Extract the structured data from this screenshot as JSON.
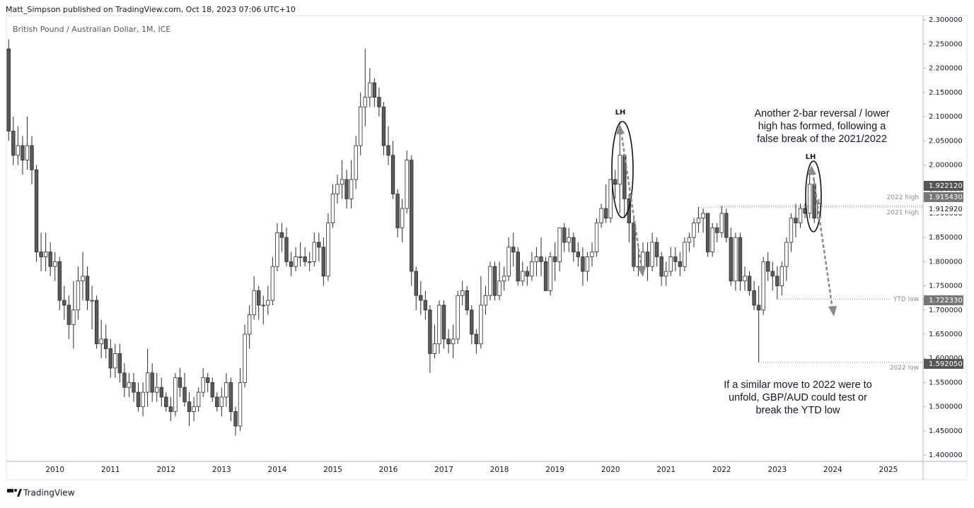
{
  "header": "Matt_Simpson published on TradingView.com, Oct 18, 2023 07:06 UTC+10",
  "footer": "TradingView",
  "chart_data": {
    "type": "candlestick",
    "title": "British Pound / Australian Dollar, 1M, ICE",
    "up_color": "#ffffff",
    "down_color": "#5a5a5a",
    "wick_color": "#2a2a2a",
    "grid": false,
    "ylim": [
      1.387,
      2.309
    ],
    "yticks": [
      {
        "value": 1.4,
        "label": "1.400000"
      },
      {
        "value": 1.45,
        "label": "1.450000"
      },
      {
        "value": 1.5,
        "label": "1.500000"
      },
      {
        "value": 1.55,
        "label": "1.550000"
      },
      {
        "value": 1.6,
        "label": "1.600000"
      },
      {
        "value": 1.65,
        "label": "1.650000"
      },
      {
        "value": 1.7,
        "label": "1.700000"
      },
      {
        "value": 1.75,
        "label": "1.750000"
      },
      {
        "value": 1.8,
        "label": "1.800000"
      },
      {
        "value": 1.85,
        "label": "1.850000"
      },
      {
        "value": 1.9,
        "label": "1.900000"
      },
      {
        "value": 1.95,
        "label": "1.950000"
      },
      {
        "value": 2.0,
        "label": "2.000000"
      },
      {
        "value": 2.05,
        "label": "2.050000"
      },
      {
        "value": 2.1,
        "label": "2.100000"
      },
      {
        "value": 2.15,
        "label": "2.150000"
      },
      {
        "value": 2.2,
        "label": "2.200000"
      },
      {
        "value": 2.25,
        "label": "2.250000"
      },
      {
        "value": 2.3,
        "label": "2.300000"
      }
    ],
    "categories": [
      null,
      null,
      null,
      null,
      null,
      null,
      null,
      null,
      null,
      null,
      "2010",
      null,
      null,
      null,
      null,
      null,
      null,
      null,
      null,
      null,
      null,
      null,
      "2011",
      null,
      null,
      null,
      null,
      null,
      null,
      null,
      null,
      null,
      null,
      null,
      "2012",
      null,
      null,
      null,
      null,
      null,
      null,
      null,
      null,
      null,
      null,
      null,
      "2013",
      null,
      null,
      null,
      null,
      null,
      null,
      null,
      null,
      null,
      null,
      null,
      "2014",
      null,
      null,
      null,
      null,
      null,
      null,
      null,
      null,
      null,
      null,
      null,
      "2015",
      null,
      null,
      null,
      null,
      null,
      null,
      null,
      null,
      null,
      null,
      null,
      "2016",
      null,
      null,
      null,
      null,
      null,
      null,
      null,
      null,
      null,
      null,
      null,
      "2017",
      null,
      null,
      null,
      null,
      null,
      null,
      null,
      null,
      null,
      null,
      null,
      "2018",
      null,
      null,
      null,
      null,
      null,
      null,
      null,
      null,
      null,
      null,
      null,
      "2019",
      null,
      null,
      null,
      null,
      null,
      null,
      null,
      null,
      null,
      null,
      null,
      "2020",
      null,
      null,
      null,
      null,
      null,
      null,
      null,
      null,
      null,
      null,
      null,
      "2021",
      null,
      null,
      null,
      null,
      null,
      null,
      null,
      null,
      null,
      null,
      null,
      "2022",
      null,
      null,
      null,
      null,
      null,
      null,
      null,
      null,
      null,
      null,
      null,
      "2023",
      null,
      null,
      null,
      null,
      null,
      null,
      null,
      null,
      null,
      null,
      null,
      "2024",
      null,
      null,
      null,
      null,
      null,
      null,
      null,
      null,
      null,
      null,
      null,
      "2025",
      null,
      null,
      null,
      null,
      null,
      null,
      null
    ],
    "open": [
      2.24,
      2.07,
      2.02,
      2.04,
      2.01,
      2.04,
      1.99,
      1.82,
      1.81,
      1.82,
      1.79,
      1.8,
      1.72,
      1.71,
      1.67,
      1.7,
      1.76,
      1.77,
      1.72,
      1.72,
      1.63,
      1.64,
      1.62,
      1.58,
      1.61,
      1.57,
      1.54,
      1.55,
      1.53,
      1.5,
      1.53,
      1.57,
      1.53,
      1.54,
      1.52,
      1.5,
      1.49,
      1.56,
      1.54,
      1.51,
      1.49,
      1.5,
      1.53,
      1.56,
      1.55,
      1.52,
      1.5,
      1.52,
      1.55,
      1.49,
      1.46,
      1.55,
      1.65,
      1.69,
      1.74,
      1.71,
      1.71,
      1.72,
      1.79,
      1.86,
      1.85,
      1.8,
      1.79,
      1.81,
      1.81,
      1.8,
      1.8,
      1.84,
      1.83,
      1.77,
      1.88,
      1.94,
      1.96,
      1.97,
      1.93,
      1.97,
      2.04,
      2.12,
      2.14,
      2.17,
      2.14,
      2.12,
      2.04,
      2.02,
      1.94,
      1.87,
      1.91,
      2.01,
      1.78,
      1.73,
      1.72,
      1.7,
      1.61,
      1.63,
      1.71,
      1.64,
      1.63,
      1.64,
      1.73,
      1.74,
      1.7,
      1.65,
      1.63,
      1.71,
      1.73,
      1.79,
      1.73,
      1.76,
      1.77,
      1.83,
      1.82,
      1.76,
      1.78,
      1.77,
      1.8,
      1.81,
      1.8,
      1.74,
      1.81,
      1.8,
      1.87,
      1.84,
      1.85,
      1.82,
      1.81,
      1.78,
      1.81,
      1.82,
      1.88,
      1.91,
      1.89,
      1.97,
      1.96,
      2.02,
      1.93,
      1.88,
      1.79,
      1.79,
      1.82,
      1.79,
      1.84,
      1.81,
      1.77,
      1.78,
      1.81,
      1.8,
      1.79,
      1.84,
      1.85,
      1.88,
      1.89,
      1.9,
      1.82,
      1.87,
      1.86,
      1.9,
      1.85,
      1.76,
      1.85,
      1.76,
      1.77,
      1.74,
      1.71,
      1.7,
      1.8,
      1.78,
      1.77,
      1.75,
      1.79,
      1.84,
      1.89,
      1.88,
      1.91,
      1.9,
      1.96,
      1.89,
      null,
      null,
      null,
      null,
      null,
      null,
      null,
      null,
      null,
      null,
      null,
      null,
      null,
      null,
      null,
      null,
      null,
      null,
      null,
      null,
      null,
      null
    ],
    "high": [
      2.26,
      2.1,
      2.08,
      2.06,
      2.1,
      2.06,
      2.0,
      1.86,
      1.86,
      1.84,
      1.82,
      1.81,
      1.75,
      1.73,
      1.76,
      1.79,
      1.82,
      1.79,
      1.75,
      1.73,
      1.68,
      1.67,
      1.64,
      1.63,
      1.63,
      1.59,
      1.57,
      1.57,
      1.55,
      1.55,
      1.62,
      1.59,
      1.57,
      1.56,
      1.53,
      1.52,
      1.57,
      1.58,
      1.57,
      1.53,
      1.52,
      1.54,
      1.58,
      1.57,
      1.56,
      1.53,
      1.54,
      1.57,
      1.56,
      1.5,
      1.58,
      1.67,
      1.71,
      1.77,
      1.75,
      1.73,
      1.75,
      1.81,
      1.88,
      1.88,
      1.87,
      1.82,
      1.83,
      1.84,
      1.83,
      1.82,
      1.86,
      1.86,
      1.85,
      1.9,
      1.96,
      1.98,
      2.01,
      1.99,
      2.01,
      2.06,
      2.15,
      2.24,
      2.2,
      2.18,
      2.16,
      2.13,
      2.08,
      2.05,
      1.95,
      1.93,
      2.03,
      2.02,
      1.79,
      1.76,
      1.74,
      1.71,
      1.67,
      1.72,
      1.72,
      1.66,
      1.67,
      1.74,
      1.76,
      1.75,
      1.71,
      1.66,
      1.77,
      1.75,
      1.8,
      1.8,
      1.8,
      1.79,
      1.85,
      1.86,
      1.83,
      1.8,
      1.79,
      1.82,
      1.83,
      1.85,
      1.81,
      1.82,
      1.84,
      1.87,
      1.88,
      1.87,
      1.86,
      1.84,
      1.83,
      1.82,
      1.84,
      1.89,
      1.92,
      1.96,
      1.97,
      1.99,
      2.09,
      2.02,
      1.94,
      1.89,
      1.83,
      1.84,
      1.84,
      1.86,
      1.85,
      1.82,
      1.8,
      1.83,
      1.83,
      1.82,
      1.85,
      1.86,
      1.89,
      1.913,
      1.91,
      1.9,
      1.88,
      1.88,
      1.915,
      1.91,
      1.87,
      1.86,
      1.86,
      1.79,
      1.78,
      1.76,
      1.75,
      1.81,
      1.82,
      1.8,
      1.79,
      1.8,
      1.85,
      1.9,
      1.92,
      1.92,
      1.92,
      1.99,
      1.97,
      1.93,
      null,
      null,
      null,
      null,
      null,
      null,
      null,
      null,
      null,
      null,
      null,
      null,
      null,
      null,
      null,
      null,
      null,
      null,
      null,
      null,
      null,
      null
    ],
    "low": [
      2.05,
      2.0,
      2.0,
      1.98,
      1.99,
      1.96,
      1.8,
      1.78,
      1.78,
      1.77,
      1.76,
      1.7,
      1.68,
      1.64,
      1.62,
      1.68,
      1.72,
      1.7,
      1.66,
      1.62,
      1.6,
      1.6,
      1.56,
      1.56,
      1.55,
      1.52,
      1.52,
      1.51,
      1.49,
      1.48,
      1.5,
      1.51,
      1.51,
      1.5,
      1.49,
      1.47,
      1.48,
      1.52,
      1.5,
      1.46,
      1.47,
      1.49,
      1.52,
      1.53,
      1.51,
      1.49,
      1.48,
      1.5,
      1.47,
      1.44,
      1.45,
      1.54,
      1.62,
      1.68,
      1.68,
      1.67,
      1.69,
      1.71,
      1.78,
      1.82,
      1.79,
      1.77,
      1.78,
      1.79,
      1.79,
      1.78,
      1.79,
      1.8,
      1.75,
      1.76,
      1.87,
      1.92,
      1.93,
      1.91,
      1.91,
      1.95,
      2.02,
      2.08,
      2.12,
      2.12,
      2.1,
      2.02,
      2.0,
      1.93,
      1.85,
      1.84,
      1.9,
      1.75,
      1.7,
      1.69,
      1.68,
      1.57,
      1.6,
      1.61,
      1.62,
      1.61,
      1.6,
      1.63,
      1.71,
      1.69,
      1.63,
      1.61,
      1.62,
      1.69,
      1.72,
      1.72,
      1.72,
      1.74,
      1.76,
      1.79,
      1.75,
      1.75,
      1.75,
      1.76,
      1.77,
      1.77,
      1.74,
      1.73,
      1.76,
      1.78,
      1.82,
      1.82,
      1.8,
      1.79,
      1.75,
      1.76,
      1.79,
      1.81,
      1.87,
      1.88,
      1.88,
      1.93,
      1.9,
      1.89,
      1.84,
      1.78,
      1.77,
      1.77,
      1.76,
      1.78,
      1.79,
      1.75,
      1.75,
      1.77,
      1.78,
      1.77,
      1.78,
      1.82,
      1.83,
      1.86,
      1.86,
      1.81,
      1.81,
      1.84,
      1.85,
      1.84,
      1.75,
      1.74,
      1.74,
      1.74,
      1.73,
      1.7,
      1.592,
      1.69,
      1.76,
      1.74,
      1.722,
      1.73,
      1.76,
      1.82,
      1.85,
      1.87,
      1.89,
      1.89,
      1.88,
      1.88,
      null,
      null,
      null,
      null,
      null,
      null,
      null,
      null,
      null,
      null,
      null,
      null,
      null,
      null,
      null,
      null,
      null,
      null,
      null,
      null,
      null,
      null
    ],
    "close": [
      2.07,
      2.02,
      2.04,
      2.01,
      2.04,
      1.99,
      1.82,
      1.81,
      1.82,
      1.79,
      1.8,
      1.72,
      1.71,
      1.67,
      1.7,
      1.76,
      1.77,
      1.72,
      1.72,
      1.63,
      1.64,
      1.62,
      1.58,
      1.61,
      1.57,
      1.54,
      1.55,
      1.53,
      1.5,
      1.53,
      1.57,
      1.53,
      1.54,
      1.52,
      1.5,
      1.49,
      1.56,
      1.54,
      1.51,
      1.49,
      1.5,
      1.53,
      1.56,
      1.55,
      1.52,
      1.5,
      1.52,
      1.55,
      1.49,
      1.46,
      1.55,
      1.65,
      1.69,
      1.74,
      1.71,
      1.71,
      1.72,
      1.79,
      1.86,
      1.85,
      1.8,
      1.79,
      1.81,
      1.81,
      1.8,
      1.8,
      1.84,
      1.83,
      1.77,
      1.88,
      1.94,
      1.96,
      1.97,
      1.93,
      1.97,
      2.04,
      2.12,
      2.14,
      2.17,
      2.14,
      2.12,
      2.04,
      2.02,
      1.94,
      1.87,
      1.91,
      2.01,
      1.78,
      1.73,
      1.72,
      1.7,
      1.61,
      1.63,
      1.71,
      1.64,
      1.63,
      1.64,
      1.73,
      1.74,
      1.7,
      1.65,
      1.63,
      1.71,
      1.73,
      1.79,
      1.73,
      1.76,
      1.77,
      1.83,
      1.82,
      1.76,
      1.78,
      1.77,
      1.8,
      1.81,
      1.8,
      1.74,
      1.81,
      1.8,
      1.87,
      1.84,
      1.85,
      1.82,
      1.81,
      1.78,
      1.81,
      1.82,
      1.88,
      1.91,
      1.89,
      1.97,
      1.96,
      2.02,
      1.93,
      1.88,
      1.79,
      1.79,
      1.82,
      1.79,
      1.84,
      1.81,
      1.77,
      1.78,
      1.81,
      1.8,
      1.79,
      1.84,
      1.85,
      1.88,
      1.89,
      1.9,
      1.82,
      1.87,
      1.86,
      1.9,
      1.85,
      1.76,
      1.85,
      1.76,
      1.77,
      1.74,
      1.71,
      1.7,
      1.8,
      1.78,
      1.77,
      1.75,
      1.79,
      1.84,
      1.89,
      1.88,
      1.91,
      1.9,
      1.96,
      1.89,
      1.92,
      null,
      null,
      null,
      null,
      null,
      null,
      null,
      null,
      null,
      null,
      null,
      null,
      null,
      null,
      null,
      null,
      null,
      null,
      null,
      null,
      null,
      null
    ],
    "levels": [
      {
        "value": 1.92212,
        "label": "1.922120"
      },
      {
        "value": 1.91543,
        "label": "1.915430",
        "name": "2022 high"
      },
      {
        "value": 1.91292,
        "label": "1.912920",
        "name": "2021 high"
      },
      {
        "value": 1.72233,
        "label": "1.722330",
        "name": "YTD low"
      },
      {
        "value": 1.59205,
        "label": "1.592050",
        "name": "2022 low"
      }
    ],
    "peak_labels": [
      "LH",
      "LH"
    ],
    "annotations": [
      [
        "Another 2-bar reversal / lower",
        "high has formed, following a",
        "false break of the 2021/2022"
      ],
      [
        "If a similar move to 2022 were to",
        "unfold, GBP/AUD could test or",
        "break the YTD low"
      ]
    ]
  }
}
